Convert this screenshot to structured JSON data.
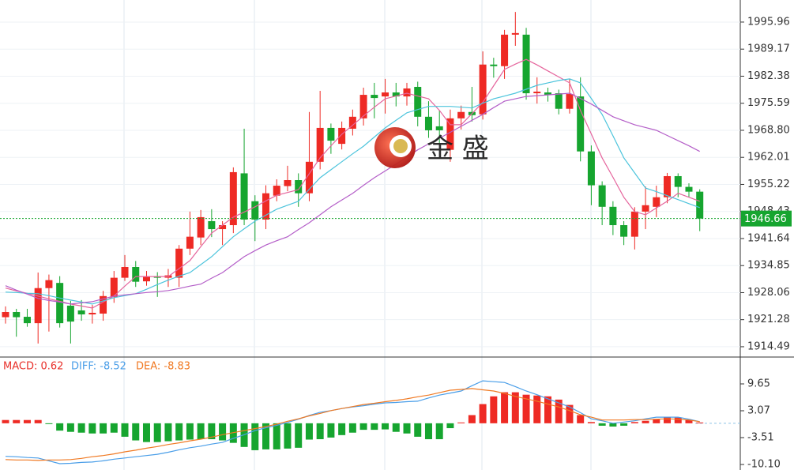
{
  "chart_data": [
    {
      "type": "candlestick",
      "watermark": "金 盛",
      "ylim": [
        1911.9,
        2001.5
      ],
      "yticks": [
        1995.96,
        1989.17,
        1982.38,
        1975.59,
        {
          "value": 1968.8,
          "label": "1968.80"
        },
        1962.01,
        1955.22,
        1948.43,
        1941.64,
        1934.85,
        1928.06,
        1921.28,
        1914.49
      ],
      "grid": true,
      "up_color": "#ee2a24",
      "down_color": "#16a52f",
      "last_price": 1946.66,
      "last_price_color": "#16a52f",
      "open": [
        1921.9,
        1923.2,
        1922.0,
        1920.4,
        1929.2,
        1930.5,
        1924.8,
        1923.6,
        1922.6,
        1922.8,
        1927.0,
        1931.8,
        1934.5,
        1930.9,
        1932.2,
        1931.8,
        1931.8,
        1939.1,
        1941.9,
        1946.0,
        1944.0,
        1945.0,
        1958.0,
        1951.0,
        1946.4,
        1952.4,
        1954.8,
        1956.3,
        1953.0,
        1960.9,
        1969.4,
        1965.4,
        1969.2,
        1971.8,
        1977.7,
        1977.3,
        1978.3,
        1977.3,
        1979.7,
        1972.2,
        1969.8,
        1963.9,
        1971.8,
        1973.4,
        1972.8,
        1985.3,
        1984.9,
        1992.8,
        1992.8,
        1978.1,
        1978.3,
        1978.1,
        1974.2,
        1977.3,
        1963.5,
        1955.0,
        1949.6,
        1945.0,
        1942.1,
        1948.4,
        1949.6,
        1952.0,
        1957.3,
        1954.6,
        1953.4
      ],
      "high": [
        1924.6,
        1924.0,
        1924.0,
        1933.1,
        1932.6,
        1932.2,
        1926.0,
        1926.2,
        1925.0,
        1928.5,
        1933.5,
        1937.5,
        1936.0,
        1933.5,
        1933.2,
        1934.0,
        1940.0,
        1948.4,
        1948.8,
        1949.0,
        1946.0,
        1959.5,
        1969.2,
        1952.5,
        1955.0,
        1956.5,
        1959.9,
        1958.0,
        1973.4,
        1978.7,
        1970.5,
        1971.0,
        1974.0,
        1979.5,
        1980.7,
        1981.7,
        1980.7,
        1980.7,
        1981.0,
        1976.1,
        1973.8,
        1974.0,
        1975.0,
        1979.7,
        1988.6,
        1987.0,
        1994.0,
        1998.5,
        1994.5,
        1982.1,
        1979.5,
        1979.0,
        1981.7,
        1982.1,
        1965.0,
        1956.0,
        1951.0,
        1946.0,
        1949.5,
        1954.7,
        1954.9,
        1958.1,
        1958.0,
        1955.5,
        1954.0
      ],
      "low": [
        1920.3,
        1917.0,
        1919.5,
        1915.3,
        1918.3,
        1919.3,
        1915.3,
        1921.0,
        1920.3,
        1921.0,
        1925.5,
        1931.0,
        1929.5,
        1929.8,
        1927.0,
        1929.5,
        1929.5,
        1937.5,
        1940.0,
        1942.0,
        1940.0,
        1943.0,
        1945.0,
        1941.0,
        1944.0,
        1951.0,
        1953.5,
        1949.6,
        1951.0,
        1959.0,
        1962.9,
        1964.0,
        1967.5,
        1970.0,
        1971.8,
        1973.0,
        1974.8,
        1975.0,
        1969.8,
        1966.9,
        1965.6,
        1960.9,
        1969.0,
        1971.0,
        1971.5,
        1982.0,
        1981.7,
        1990.0,
        1976.5,
        1975.5,
        1976.0,
        1972.8,
        1973.0,
        1961.0,
        1950.0,
        1945.0,
        1942.5,
        1940.0,
        1938.9,
        1944.0,
        1947.0,
        1950.5,
        1952.0,
        1952.0,
        1943.5
      ],
      "close": [
        1923.2,
        1921.9,
        1920.4,
        1929.2,
        1931.2,
        1920.4,
        1920.8,
        1922.6,
        1923.0,
        1927.2,
        1931.8,
        1934.5,
        1930.8,
        1932.1,
        1931.8,
        1932.4,
        1939.1,
        1942.1,
        1947.0,
        1944.0,
        1945.0,
        1958.3,
        1946.4,
        1946.4,
        1953.0,
        1954.9,
        1956.3,
        1953.0,
        1960.9,
        1969.4,
        1966.2,
        1969.4,
        1972.2,
        1977.7,
        1976.9,
        1978.3,
        1977.3,
        1979.3,
        1972.2,
        1968.8,
        1968.8,
        1971.8,
        1973.4,
        1972.6,
        1985.3,
        1984.9,
        1992.8,
        1993.2,
        1978.1,
        1978.5,
        1977.7,
        1974.2,
        1977.9,
        1963.5,
        1955.0,
        1949.6,
        1945.0,
        1942.1,
        1948.4,
        1950.0,
        1952.0,
        1957.3,
        1954.6,
        1953.4,
        1946.66
      ],
      "series": [
        {
          "color": "#e5649c",
          "values": [
            1929.2,
            1928.5,
            1927.9,
            1927.2,
            1926.5,
            1925.9,
            1925.2,
            1924.7,
            1924.2,
            1925.7,
            1927.2,
            1929.7,
            1932.1,
            1932.1,
            1932.1,
            1932.1,
            1934.1,
            1936.1,
            1939.6,
            1943.0,
            1945.0,
            1947.0,
            1948.3,
            1949.6,
            1951.1,
            1952.5,
            1953.2,
            1953.9,
            1957.9,
            1961.9,
            1964.9,
            1967.8,
            1970.1,
            1972.4,
            1974.6,
            1976.7,
            1977.4,
            1978.1,
            1977.4,
            1976.7,
            1973.8,
            1970.2,
            1970.2,
            1973.0,
            1975.8,
            1980.0,
            1984.1,
            1985.4,
            1986.6,
            1985.2,
            1983.7,
            1982.2,
            1980.7,
            1973.8,
            1967.9,
            1961.9,
            1957.0,
            1952.0,
            1948.4,
            1947.6,
            1949.3,
            1951.0,
            1953.0,
            1952.0,
            1951.0
          ]
        },
        {
          "color": "#4cc4dc",
          "values": [
            1928.2,
            1928.1,
            1927.9,
            1927.8,
            1927.3,
            1926.7,
            1926.2,
            1925.7,
            1925.2,
            1926.0,
            1926.8,
            1927.3,
            1927.8,
            1928.9,
            1930.1,
            1931.2,
            1932.2,
            1933.1,
            1935.1,
            1937.1,
            1939.6,
            1942.1,
            1944.1,
            1946.0,
            1947.5,
            1949.0,
            1950.0,
            1951.0,
            1954.0,
            1956.9,
            1958.9,
            1960.9,
            1962.9,
            1964.8,
            1967.1,
            1969.4,
            1971.3,
            1973.2,
            1974.0,
            1974.8,
            1974.8,
            1974.8,
            1974.6,
            1974.4,
            1975.6,
            1976.7,
            1977.4,
            1978.1,
            1979.1,
            1980.1,
            1980.7,
            1981.3,
            1981.7,
            1980.7,
            1976.8,
            1972.8,
            1967.4,
            1961.9,
            1958.1,
            1954.3,
            1953.4,
            1952.4,
            1951.4,
            1950.4,
            1949.4
          ]
        },
        {
          "color": "#b45ec8",
          "values": [
            1929.8,
            1928.7,
            1927.7,
            1926.6,
            1926.1,
            1925.7,
            1925.2,
            1925.5,
            1925.8,
            1926.5,
            1927.2,
            1927.5,
            1927.8,
            1928.1,
            1928.3,
            1928.6,
            1929.1,
            1929.7,
            1930.2,
            1931.7,
            1933.1,
            1935.1,
            1937.1,
            1938.6,
            1940.0,
            1941.1,
            1942.1,
            1943.9,
            1945.6,
            1947.6,
            1949.6,
            1951.3,
            1953.0,
            1955.0,
            1956.9,
            1958.6,
            1960.3,
            1962.1,
            1963.9,
            1965.4,
            1966.8,
            1968.3,
            1969.8,
            1971.3,
            1972.8,
            1974.5,
            1976.1,
            1976.7,
            1977.3,
            1977.5,
            1977.7,
            1977.9,
            1978.1,
            1976.8,
            1975.4,
            1973.8,
            1972.2,
            1971.2,
            1970.2,
            1969.5,
            1968.8,
            1967.5,
            1966.2,
            1964.9,
            1963.5
          ]
        }
      ]
    },
    {
      "type": "macd",
      "ylim": [
        -11.45,
        16.23
      ],
      "yticks": [
        9.65,
        3.07,
        -3.51,
        {
          "value": -10.1,
          "label": "-10.10"
        }
      ],
      "up_color": "#ee2a24",
      "down_color": "#16a52f",
      "series": [
        {
          "name": "MACD: 0.62",
          "color": "#e8302a",
          "values": [
            0.8,
            0.8,
            0.8,
            0.8,
            -0.2,
            -1.8,
            -2.1,
            -2.3,
            -2.5,
            -2.5,
            -2.3,
            -3.3,
            -4.2,
            -4.6,
            -4.6,
            -4.4,
            -4.2,
            -4.0,
            -3.9,
            -3.9,
            -4.2,
            -4.8,
            -5.8,
            -6.6,
            -6.4,
            -6.4,
            -6.2,
            -6.0,
            -4.0,
            -3.9,
            -3.5,
            -2.9,
            -2.3,
            -1.6,
            -1.6,
            -1.5,
            -2.1,
            -2.5,
            -3.3,
            -3.9,
            -3.9,
            -1.2,
            0.2,
            2.0,
            4.7,
            6.6,
            7.6,
            7.6,
            7.0,
            6.8,
            6.6,
            5.8,
            4.5,
            2.0,
            0.3,
            -0.6,
            -0.8,
            -0.6,
            0.3,
            0.6,
            1.0,
            1.6,
            1.4,
            0.8,
            0.2
          ]
        },
        {
          "name": "DIFF: -8.52",
          "color": "#4a9ee8",
          "values": [
            -8.1,
            -8.2,
            -8.4,
            -8.5,
            -9.2,
            -9.9,
            -9.8,
            -9.6,
            -9.5,
            -9.2,
            -8.8,
            -8.5,
            -8.2,
            -7.9,
            -7.6,
            -7.1,
            -6.5,
            -6.0,
            -5.6,
            -5.1,
            -4.7,
            -3.7,
            -2.8,
            -1.8,
            -1.1,
            -0.5,
            0.2,
            1.0,
            1.9,
            2.7,
            3.1,
            3.6,
            4.0,
            4.3,
            4.7,
            5.0,
            5.1,
            5.3,
            5.4,
            6.2,
            6.9,
            7.4,
            7.9,
            9.2,
            10.4,
            10.2,
            10.0,
            9.0,
            7.9,
            7.0,
            6.0,
            5.0,
            4.0,
            2.6,
            1.1,
            0.6,
            0,
            0.3,
            0.6,
            1.1,
            1.5,
            1.5,
            1.5,
            1.0,
            0.4
          ]
        },
        {
          "name": "DEA: -8.83",
          "color": "#f07a24",
          "values": [
            -8.9,
            -9.0,
            -9.0,
            -9.1,
            -9.0,
            -9.0,
            -8.9,
            -8.6,
            -8.2,
            -7.9,
            -7.5,
            -7.0,
            -6.6,
            -6.1,
            -5.7,
            -5.2,
            -4.8,
            -4.3,
            -3.9,
            -3.4,
            -2.8,
            -2.3,
            -1.8,
            -1.3,
            -0.8,
            -0.2,
            0.5,
            1.1,
            1.8,
            2.4,
            3.1,
            3.6,
            4.1,
            4.6,
            4.9,
            5.3,
            5.6,
            6.0,
            6.5,
            6.9,
            7.5,
            8.1,
            8.3,
            8.5,
            8.2,
            7.9,
            7.3,
            6.6,
            6.0,
            5.4,
            4.7,
            4.0,
            3.1,
            2.1,
            1.5,
            0.8,
            0.8,
            0.8,
            0.9,
            0.9,
            1.0,
            1.1,
            1.0,
            0.8,
            0.4
          ]
        }
      ]
    }
  ]
}
